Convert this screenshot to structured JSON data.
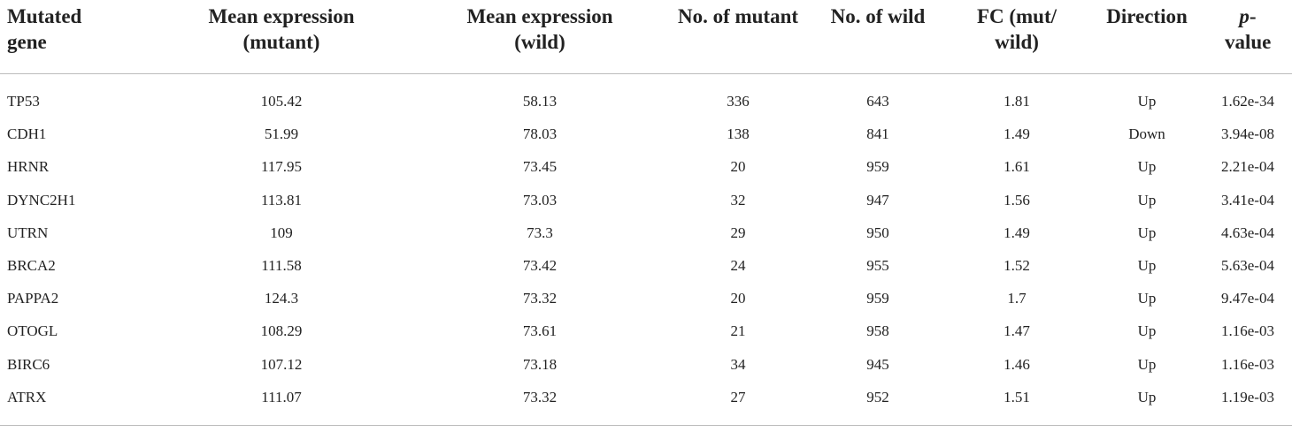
{
  "table": {
    "headers": [
      "Mutated gene",
      "Mean expression (mutant)",
      "Mean expression (wild)",
      "No. of mutant",
      "No. of wild",
      "FC (mut/ wild)",
      "Direction",
      "p-value"
    ],
    "rows": [
      [
        "TP53",
        "105.42",
        "58.13",
        "336",
        "643",
        "1.81",
        "Up",
        "1.62e-34"
      ],
      [
        "CDH1",
        "51.99",
        "78.03",
        "138",
        "841",
        "1.49",
        "Down",
        "3.94e-08"
      ],
      [
        "HRNR",
        "117.95",
        "73.45",
        "20",
        "959",
        "1.61",
        "Up",
        "2.21e-04"
      ],
      [
        "DYNC2H1",
        "113.81",
        "73.03",
        "32",
        "947",
        "1.56",
        "Up",
        "3.41e-04"
      ],
      [
        "UTRN",
        "109",
        "73.3",
        "29",
        "950",
        "1.49",
        "Up",
        "4.63e-04"
      ],
      [
        "BRCA2",
        "111.58",
        "73.42",
        "24",
        "955",
        "1.52",
        "Up",
        "5.63e-04"
      ],
      [
        "PAPPA2",
        "124.3",
        "73.32",
        "20",
        "959",
        "1.7",
        "Up",
        "9.47e-04"
      ],
      [
        "OTOGL",
        "108.29",
        "73.61",
        "21",
        "958",
        "1.47",
        "Up",
        "1.16e-03"
      ],
      [
        "BIRC6",
        "107.12",
        "73.18",
        "34",
        "945",
        "1.46",
        "Up",
        "1.16e-03"
      ],
      [
        "ATRX",
        "111.07",
        "73.32",
        "27",
        "952",
        "1.51",
        "Up",
        "1.19e-03"
      ]
    ]
  }
}
